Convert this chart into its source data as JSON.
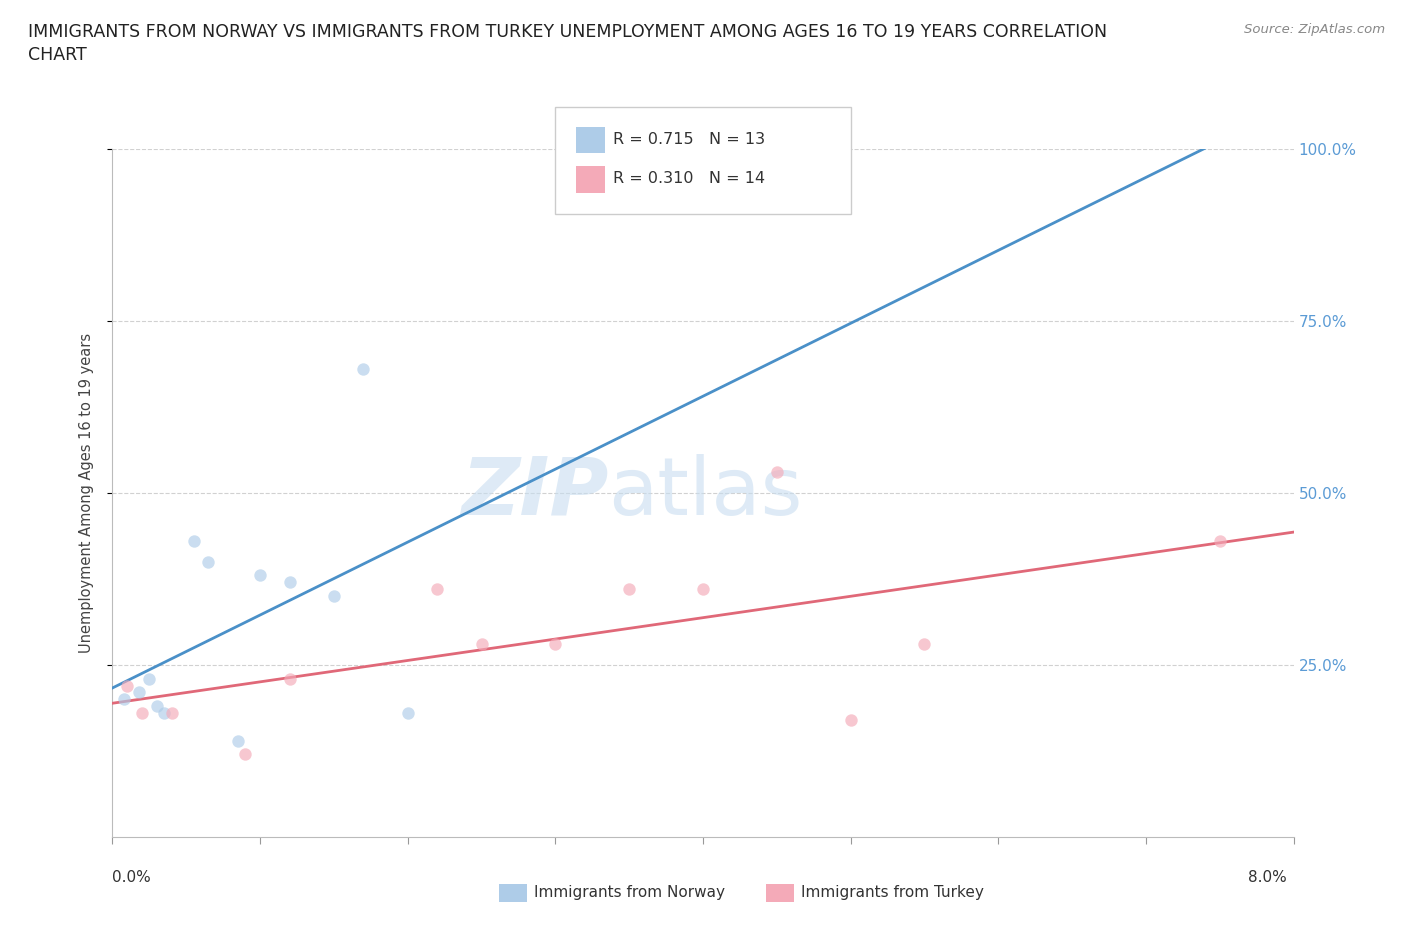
{
  "title_line1": "IMMIGRANTS FROM NORWAY VS IMMIGRANTS FROM TURKEY UNEMPLOYMENT AMONG AGES 16 TO 19 YEARS CORRELATION",
  "title_line2": "CHART",
  "source": "Source: ZipAtlas.com",
  "ylabel": "Unemployment Among Ages 16 to 19 years",
  "xlim": [
    0.0,
    8.0
  ],
  "ylim": [
    0.0,
    100.0
  ],
  "ytick_values": [
    25.0,
    50.0,
    75.0,
    100.0
  ],
  "ytick_labels_right": [
    "25.0%",
    "50.0%",
    "75.0%",
    "100.0%"
  ],
  "norway_R": "0.715",
  "norway_N": "13",
  "turkey_R": "0.310",
  "turkey_N": "14",
  "norway_face_color": "#aecce8",
  "turkey_face_color": "#f4aab8",
  "norway_line_color": "#4a90c8",
  "turkey_line_color": "#e06878",
  "norway_points_x": [
    0.08,
    0.18,
    0.25,
    0.3,
    0.35,
    0.55,
    0.65,
    0.85,
    1.0,
    1.2,
    1.5,
    1.7,
    2.0
  ],
  "norway_points_y": [
    20.0,
    21.0,
    23.0,
    19.0,
    18.0,
    43.0,
    40.0,
    14.0,
    38.0,
    37.0,
    35.0,
    68.0,
    18.0
  ],
  "turkey_points_x": [
    0.1,
    0.2,
    0.4,
    0.9,
    1.2,
    2.2,
    2.5,
    3.0,
    3.5,
    4.0,
    4.5,
    5.0,
    5.5,
    7.5
  ],
  "turkey_points_y": [
    22.0,
    18.0,
    18.0,
    12.0,
    23.0,
    36.0,
    28.0,
    28.0,
    36.0,
    36.0,
    53.0,
    17.0,
    28.0,
    43.0
  ],
  "watermark_zip": "ZIP",
  "watermark_atlas": "atlas",
  "legend_label_norway": "Immigrants from Norway",
  "legend_label_turkey": "Immigrants from Turkey",
  "right_tick_color": "#5b9bd5",
  "title_fontsize": 12.5,
  "scatter_size": 80,
  "scatter_alpha": 0.65
}
